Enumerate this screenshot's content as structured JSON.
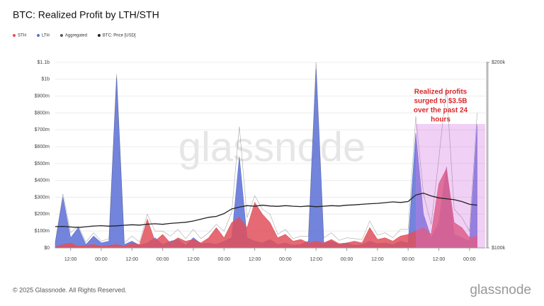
{
  "chart_data": {
    "type": "area",
    "title": "BTC: Realized Profit by LTH/STH",
    "categories": [
      null,
      null,
      "12:00",
      null,
      null,
      null,
      "00:00",
      null,
      null,
      null,
      "12:00",
      null,
      null,
      null,
      "00:00",
      null,
      null,
      null,
      "12:00",
      null,
      null,
      null,
      "00:00",
      null,
      null,
      null,
      "12:00",
      null,
      null,
      null,
      "00:00",
      null,
      null,
      null,
      "12:00",
      null,
      null,
      null,
      "00:00",
      null,
      null,
      null,
      "12:00",
      null,
      null,
      null,
      "00:00",
      null,
      null,
      null,
      "12:00",
      null,
      null,
      null,
      "00:00",
      null
    ],
    "series": [
      {
        "name": "STH",
        "color": "#e0505a",
        "values": [
          5,
          20,
          30,
          10,
          15,
          20,
          10,
          15,
          20,
          10,
          30,
          20,
          170,
          40,
          80,
          30,
          60,
          40,
          50,
          30,
          60,
          120,
          60,
          150,
          180,
          120,
          270,
          200,
          150,
          60,
          80,
          40,
          50,
          30,
          40,
          30,
          50,
          25,
          30,
          40,
          30,
          120,
          50,
          60,
          40,
          70,
          80,
          100,
          120,
          80,
          380,
          470,
          150,
          120,
          60,
          70
        ]
      },
      {
        "name": "LTH",
        "color": "#5b6fd6",
        "values": [
          30,
          300,
          60,
          120,
          20,
          70,
          30,
          40,
          1010,
          20,
          40,
          15,
          30,
          60,
          20,
          40,
          50,
          15,
          60,
          25,
          30,
          20,
          40,
          60,
          540,
          60,
          40,
          30,
          50,
          20,
          30,
          15,
          20,
          40,
          1060,
          30,
          40,
          20,
          30,
          15,
          20,
          40,
          25,
          30,
          20,
          40,
          30,
          680,
          200,
          60,
          150,
          480,
          80,
          60,
          40,
          730
        ]
      },
      {
        "name": "Aggregated",
        "color": "#555555",
        "values": [
          35,
          320,
          90,
          130,
          35,
          90,
          40,
          55,
          1030,
          30,
          70,
          35,
          200,
          100,
          100,
          70,
          110,
          55,
          110,
          55,
          90,
          140,
          100,
          210,
          720,
          180,
          310,
          230,
          200,
          80,
          110,
          55,
          70,
          70,
          1100,
          60,
          90,
          45,
          60,
          55,
          50,
          160,
          75,
          90,
          60,
          110,
          110,
          780,
          320,
          140,
          530,
          950,
          230,
          180,
          100,
          800
        ]
      },
      {
        "name": "BTC: Price [USD]",
        "color": "#222222",
        "axis": "y2",
        "values": [
          111.5,
          111.6,
          111.3,
          111.0,
          111.4,
          111.8,
          112.0,
          111.7,
          111.9,
          112.2,
          112.5,
          112.3,
          112.8,
          113.0,
          112.7,
          113.2,
          113.5,
          113.8,
          114.5,
          115.5,
          116.5,
          117.0,
          118.5,
          121.0,
          122.0,
          122.8,
          122.5,
          123.0,
          122.6,
          122.4,
          122.8,
          122.5,
          122.3,
          122.6,
          122.2,
          122.5,
          122.8,
          122.6,
          123.0,
          123.2,
          123.5,
          123.8,
          124.0,
          124.4,
          124.8,
          124.5,
          125.0,
          128.5,
          129.5,
          128.0,
          127.0,
          126.5,
          126.0,
          125.0,
          123.5,
          123.0
        ]
      }
    ],
    "ylim": [
      0,
      1100
    ],
    "yticks": [
      {
        "value": 0,
        "label": "$0"
      },
      {
        "value": 100,
        "label": "$100m"
      },
      {
        "value": 200,
        "label": "$200m"
      },
      {
        "value": 300,
        "label": "$300m"
      },
      {
        "value": 400,
        "label": "$400m"
      },
      {
        "value": 500,
        "label": "$500m"
      },
      {
        "value": 600,
        "label": "$600m"
      },
      {
        "value": 700,
        "label": "$700m"
      },
      {
        "value": 800,
        "label": "$800m"
      },
      {
        "value": 900,
        "label": "$900m"
      },
      {
        "value": 1000,
        "label": "$1b"
      },
      {
        "value": 1100,
        "label": "$1.1b"
      }
    ],
    "y2lim": [
      100,
      200
    ],
    "y2ticks": [
      {
        "value": 100,
        "label": "$100k"
      },
      {
        "value": 200,
        "label": "$200k"
      }
    ],
    "grid": true,
    "annotation": [
      "Realized profits",
      "surged to $3.5B",
      "over the past 24",
      "hours"
    ]
  },
  "watermark": "glassnode",
  "footer": "© 2025 Glassnode. All Rights Reserved.",
  "logo": "glassnode"
}
